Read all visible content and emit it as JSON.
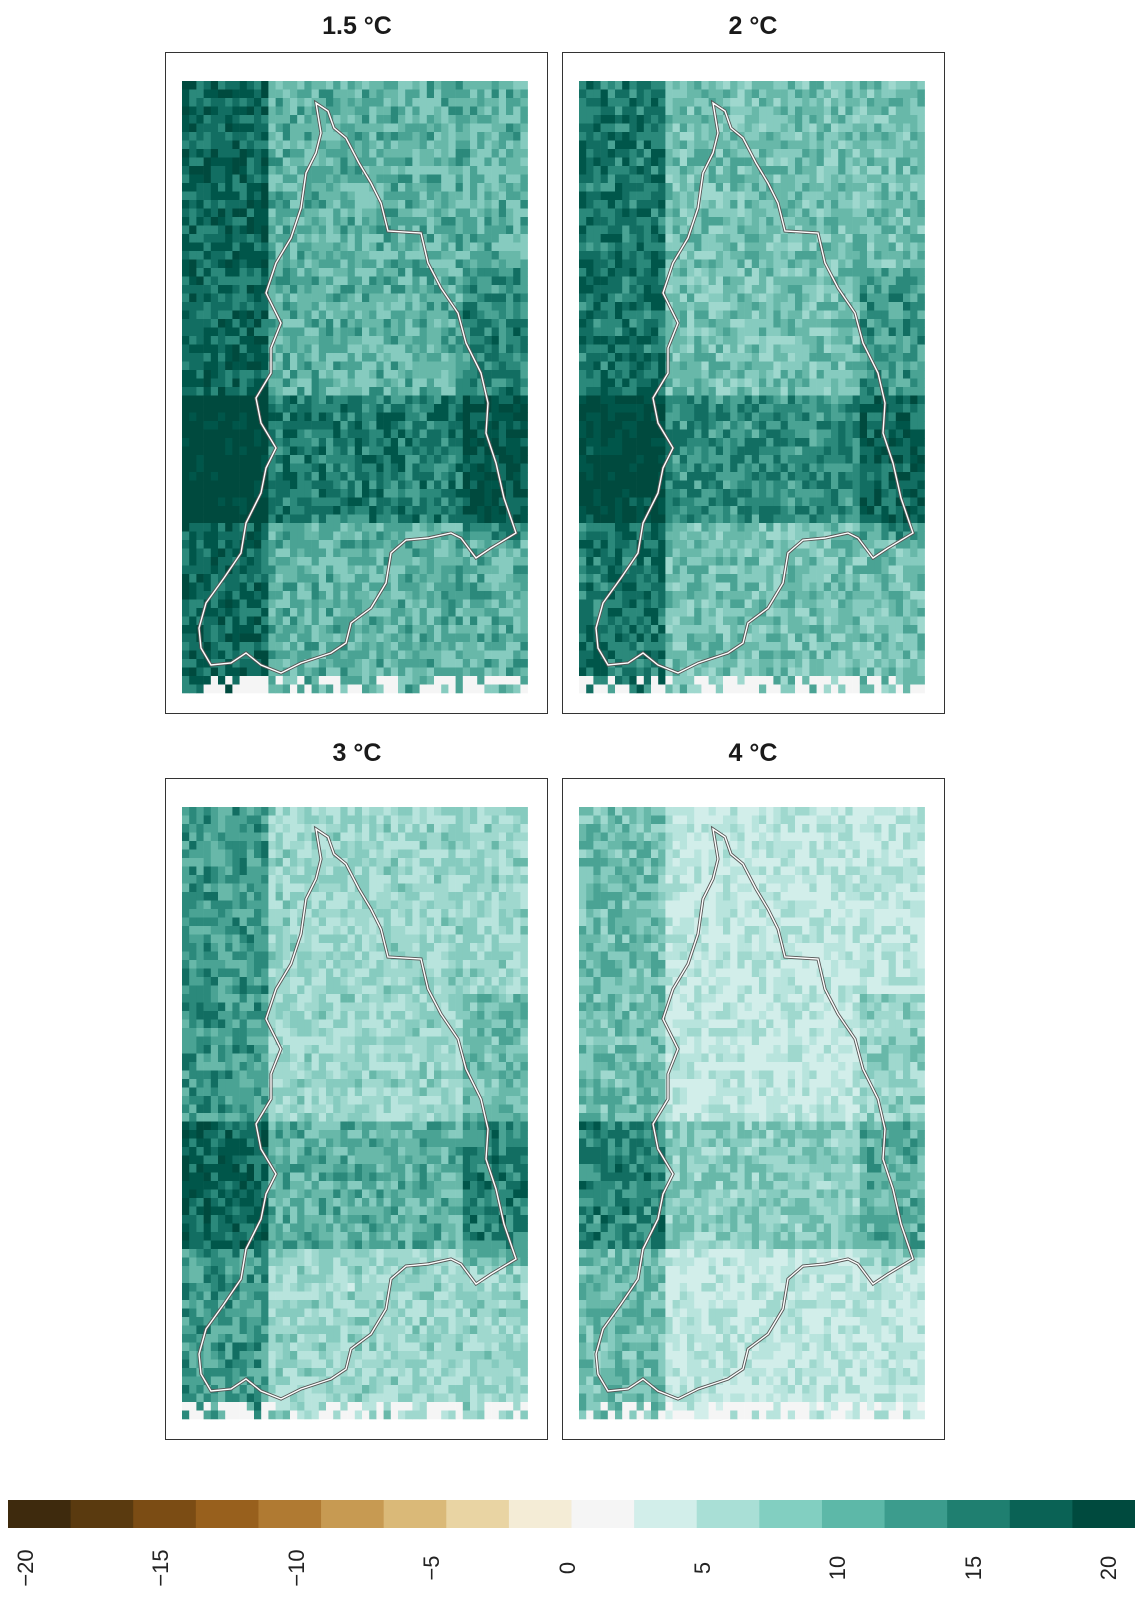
{
  "panels": [
    {
      "title": "1.5 °C",
      "wet": 0.62
    },
    {
      "title": "2 °C",
      "wet": 0.55
    },
    {
      "title": "3 °C",
      "wet": 0.38
    },
    {
      "title": "4 °C",
      "wet": 0.22
    }
  ],
  "legend": {
    "ticks": [
      "−20",
      "−15",
      "−10",
      "−5",
      "0",
      "5",
      "10",
      "15",
      "20"
    ],
    "min": -20,
    "max": 20,
    "colors": [
      "#3e2a0d",
      "#5a3a0f",
      "#7b4c14",
      "#98601d",
      "#b07a32",
      "#c79a52",
      "#dab978",
      "#e9d4a3",
      "#f4ecd6",
      "#f5f5f5",
      "#d2eeea",
      "#a9dfd6",
      "#82cfc1",
      "#5db8a8",
      "#3c9c8d",
      "#1f7f70",
      "#0a6255",
      "#004a3e"
    ]
  },
  "colors": {
    "frame": "#333333",
    "outline": "#ffffff"
  }
}
